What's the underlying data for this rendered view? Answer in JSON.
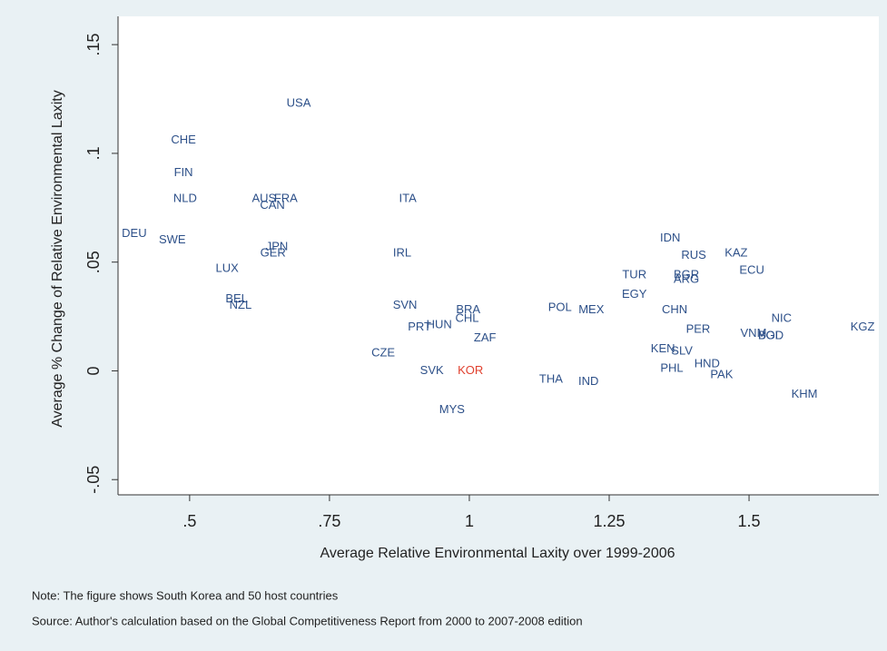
{
  "chart_data": {
    "type": "scatter",
    "x_label": "Average Relative Environmental Laxity over 1999-2006",
    "y_label": "Average % Change of Relative Environmental Laxity",
    "xlim": [
      0.372,
      1.732
    ],
    "ylim": [
      -0.057,
      0.163
    ],
    "xticks": [
      {
        "value": 0.5,
        "label": ".5"
      },
      {
        "value": 0.75,
        "label": ".75"
      },
      1,
      {
        "value": 1.25,
        "label": "1.25"
      },
      {
        "value": 1.5,
        "label": "1.5"
      }
    ],
    "yticks": [
      {
        "value": -0.05,
        "label": "-.05"
      },
      0,
      {
        "value": 0.05,
        "label": ".05"
      },
      {
        "value": 0.1,
        "label": ".1"
      },
      {
        "value": 0.15,
        "label": ".15"
      }
    ],
    "labels": [
      "USA",
      "CHE",
      "FIN",
      "NLD",
      "AUS",
      "FRA",
      "CAN",
      "ITA",
      "DEU",
      "SWE",
      "JPN",
      "GER",
      "IRL",
      "LUX",
      "BEL",
      "NZL",
      "SVN",
      "BRA",
      "CHL",
      "HUN",
      "PRT",
      "ZAF",
      "CZE",
      "SVK",
      "KOR",
      "MYS",
      "POL",
      "MEX",
      "THA",
      "IND",
      "TUR",
      "EGY",
      "IDN",
      "RUS",
      "BGR",
      "ARG",
      "KAZ",
      "ECU",
      "CHN",
      "PER",
      "KEN",
      "SLV",
      "PHL",
      "HND",
      "PAK",
      "NIC",
      "VNM",
      "BOL",
      "BGD",
      "KGZ",
      "KHM"
    ],
    "x": [
      0.695,
      0.489,
      0.489,
      0.492,
      0.633,
      0.672,
      0.648,
      0.89,
      0.401,
      0.469,
      0.656,
      0.649,
      0.88,
      0.567,
      0.584,
      0.591,
      0.885,
      0.998,
      0.996,
      0.946,
      0.911,
      1.028,
      0.846,
      0.933,
      1.002,
      0.969,
      1.162,
      1.218,
      1.146,
      1.213,
      1.295,
      1.295,
      1.359,
      1.401,
      1.388,
      1.388,
      1.477,
      1.505,
      1.367,
      1.409,
      1.346,
      1.38,
      1.362,
      1.425,
      1.451,
      1.558,
      1.508,
      1.537,
      1.539,
      1.703,
      1.599
    ],
    "values": [
      0.123,
      0.106,
      0.091,
      0.079,
      0.079,
      0.079,
      0.076,
      0.079,
      0.063,
      0.06,
      0.057,
      0.054,
      0.054,
      0.047,
      0.033,
      0.03,
      0.03,
      0.028,
      0.024,
      0.021,
      0.02,
      0.015,
      0.008,
      0.0,
      0.0,
      -0.018,
      0.029,
      0.028,
      -0.004,
      -0.005,
      0.044,
      0.035,
      0.061,
      0.053,
      0.044,
      0.042,
      0.054,
      0.046,
      0.028,
      0.019,
      0.01,
      0.009,
      0.001,
      0.003,
      -0.002,
      0.024,
      0.017,
      0.016,
      0.016,
      0.02,
      -0.011
    ],
    "color": "#2d5089",
    "highlight_label": "KOR",
    "highlight_color": "#e0402e",
    "notes": [
      "Note: The figure shows South Korea and 50 host countries",
      "Source: Author's calculation based on the Global Competitiveness Report from 2000 to 2007-2008 edition"
    ]
  }
}
